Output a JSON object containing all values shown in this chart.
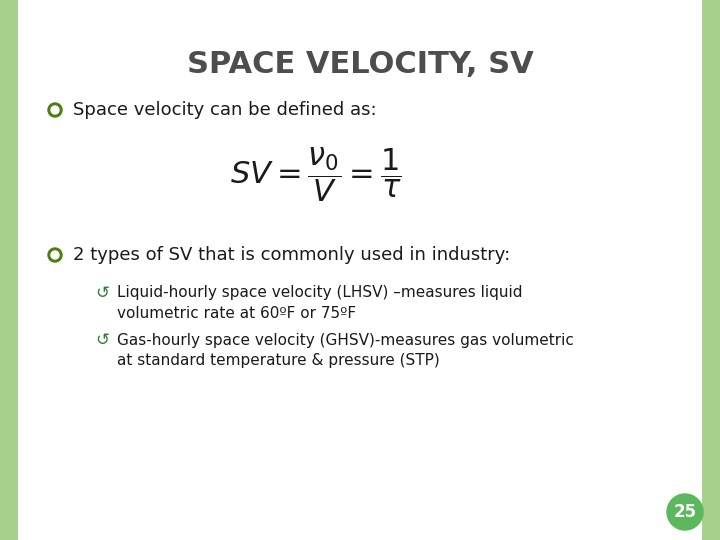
{
  "title": "SPACE VELOCITY, SV",
  "title_color": "#4d4d4d",
  "title_fontsize": 22,
  "background_color": "#ffffff",
  "border_color": "#a8d08d",
  "bullet_color": "#4d7c0f",
  "bullet1_text": "Space velocity can be defined as:",
  "formula": "$SV = \\dfrac{\\nu_0}{V} = \\dfrac{1}{\\tau}$",
  "bullet2_text": "2 types of SV that is commonly used in industry:",
  "sub_bullet1_line1": "Liquid-hourly space velocity (LHSV) –measures liquid",
  "sub_bullet1_line2": "volumetric rate at 60ºF or 75ºF",
  "sub_bullet2_line1": "Gas-hourly space velocity (GHSV)-measures gas volumetric",
  "sub_bullet2_line2": "at standard temperature & pressure (STP)",
  "page_number": "25",
  "page_circle_color": "#5cb85c",
  "page_number_color": "#ffffff",
  "text_color": "#1a1a1a",
  "sub_bullet_color": "#2e7d32"
}
